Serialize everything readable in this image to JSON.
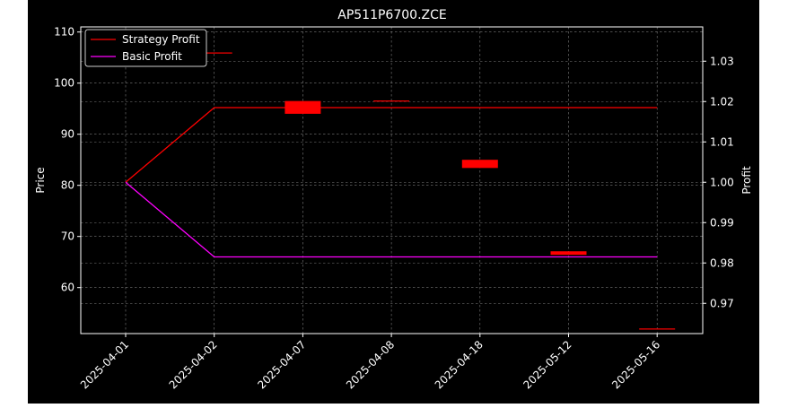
{
  "chart_data": {
    "type": "line",
    "title": "AP511P6700.ZCE",
    "ylabel_left": "Price",
    "ylabel_right": "Profit",
    "categories": [
      "2025-04-01",
      "2025-04-02",
      "2025-04-07",
      "2025-04-08",
      "2025-04-18",
      "2025-05-12",
      "2025-05-16"
    ],
    "y_left": {
      "lim": [
        51,
        111
      ],
      "ticks": [
        60,
        70,
        80,
        90,
        100,
        110
      ]
    },
    "y_right": {
      "lim": [
        0.9625,
        1.0385
      ],
      "ticks": [
        0.97,
        0.98,
        0.99,
        1.0,
        1.01,
        1.02,
        1.03
      ]
    },
    "grid": true,
    "legend_position": "top-left",
    "candles": [
      {
        "x": "2025-04-02",
        "open": 106.0,
        "close": 106.0
      },
      {
        "x": "2025-04-07",
        "open": 96.5,
        "close": 94.0
      },
      {
        "x": "2025-04-08",
        "open": 96.6,
        "close": 96.6
      },
      {
        "x": "2025-04-18",
        "open": 85.0,
        "close": 83.4
      },
      {
        "x": "2025-05-12",
        "open": 67.1,
        "close": 66.4
      },
      {
        "x": "2025-05-16",
        "open": 52.0,
        "close": 52.0
      }
    ],
    "series": [
      {
        "name": "Strategy Profit",
        "color": "#ff0000",
        "values": [
          1.0,
          1.0185,
          1.0185,
          1.0185,
          1.0185,
          1.0185,
          1.0185
        ]
      },
      {
        "name": "Basic Profit",
        "color": "#ff00ff",
        "values": [
          1.0,
          0.9815,
          0.9815,
          0.9815,
          0.9815,
          0.9815,
          0.9815
        ]
      }
    ],
    "candle_color": "#ff0000"
  }
}
